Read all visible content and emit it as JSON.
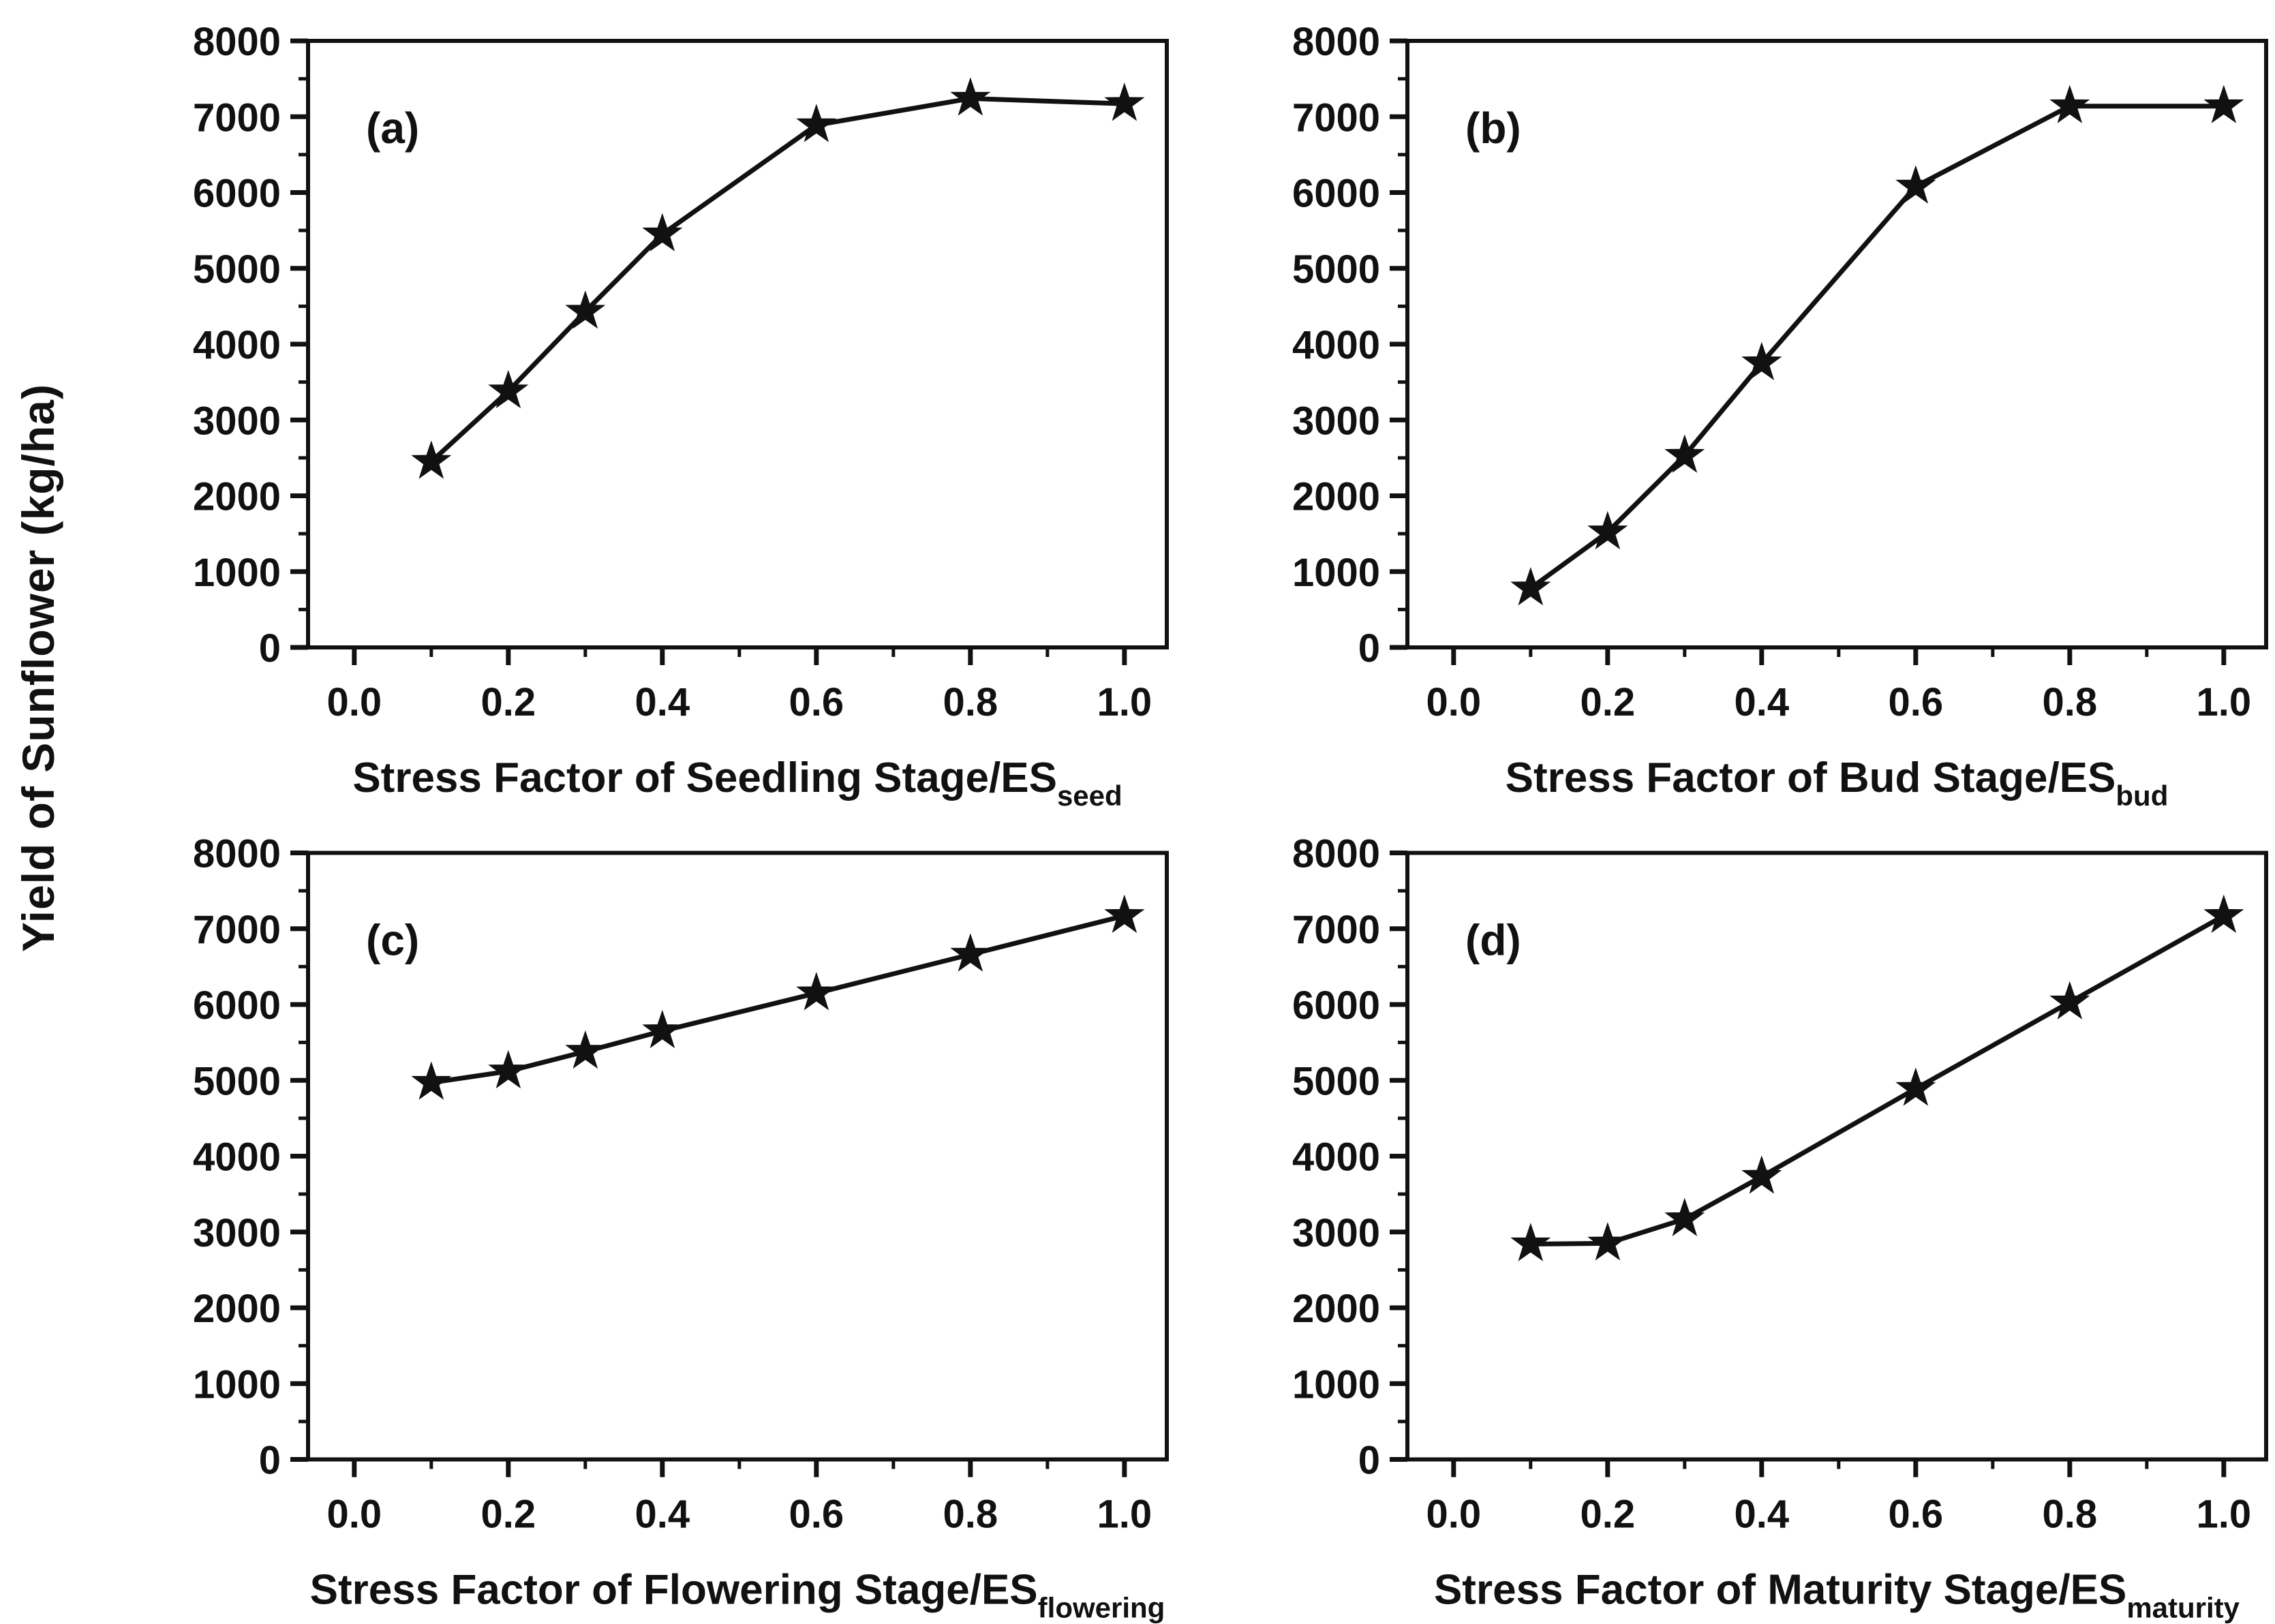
{
  "figure": {
    "ylabel": "Yield of Sunflower (kg/ha)",
    "background": "#ffffff",
    "line_color": "#111111",
    "text_color": "#111111",
    "marker": "star-icon"
  },
  "chart_data": [
    {
      "type": "line",
      "panel_label": "(a)",
      "xlabel_main": "Stress Factor of Seedling Stage/ES",
      "xlabel_sub": "seed",
      "x": [
        0.1,
        0.2,
        0.3,
        0.4,
        0.6,
        0.8,
        1.0
      ],
      "y": [
        2450,
        3380,
        4430,
        5450,
        6890,
        7240,
        7170
      ],
      "xlim": [
        -0.06,
        1.055
      ],
      "ylim": [
        0,
        8000
      ],
      "xticks": [
        0.0,
        0.2,
        0.4,
        0.6,
        0.8,
        1.0
      ],
      "xtick_labels": [
        "0.0",
        "0.2",
        "0.4",
        "0.6",
        "0.8",
        "1.0"
      ],
      "xticks_minor": [
        0.1,
        0.3,
        0.5,
        0.7,
        0.9
      ],
      "yticks": [
        0,
        1000,
        2000,
        3000,
        4000,
        5000,
        6000,
        7000,
        8000
      ],
      "ytick_labels": [
        "0",
        "1000",
        "2000",
        "3000",
        "4000",
        "5000",
        "6000",
        "7000",
        "8000"
      ],
      "yticks_minor": [
        500,
        1500,
        2500,
        3500,
        4500,
        5500,
        6500,
        7500
      ],
      "grid": "off",
      "legend": "none"
    },
    {
      "type": "line",
      "panel_label": "(b)",
      "xlabel_main": "Stress Factor of Bud Stage/ES",
      "xlabel_sub": "bud",
      "x": [
        0.1,
        0.2,
        0.3,
        0.4,
        0.6,
        0.8,
        1.0
      ],
      "y": [
        780,
        1520,
        2530,
        3750,
        6080,
        7140,
        7140
      ],
      "xlim": [
        -0.06,
        1.055
      ],
      "ylim": [
        0,
        8000
      ],
      "xticks": [
        0.0,
        0.2,
        0.4,
        0.6,
        0.8,
        1.0
      ],
      "xtick_labels": [
        "0.0",
        "0.2",
        "0.4",
        "0.6",
        "0.8",
        "1.0"
      ],
      "xticks_minor": [
        0.1,
        0.3,
        0.5,
        0.7,
        0.9
      ],
      "yticks": [
        0,
        1000,
        2000,
        3000,
        4000,
        5000,
        6000,
        7000,
        8000
      ],
      "ytick_labels": [
        "0",
        "1000",
        "2000",
        "3000",
        "4000",
        "5000",
        "6000",
        "7000",
        "8000"
      ],
      "yticks_minor": [
        500,
        1500,
        2500,
        3500,
        4500,
        5500,
        6500,
        7500
      ],
      "grid": "off",
      "legend": "none"
    },
    {
      "type": "line",
      "panel_label": "(c)",
      "xlabel_main": "Stress Factor of Flowering Stage/ES",
      "xlabel_sub": "flowering",
      "x": [
        0.1,
        0.2,
        0.3,
        0.4,
        0.6,
        0.8,
        1.0
      ],
      "y": [
        4970,
        5120,
        5380,
        5650,
        6150,
        6660,
        7170
      ],
      "xlim": [
        -0.06,
        1.055
      ],
      "ylim": [
        0,
        8000
      ],
      "xticks": [
        0.0,
        0.2,
        0.4,
        0.6,
        0.8,
        1.0
      ],
      "xtick_labels": [
        "0.0",
        "0.2",
        "0.4",
        "0.6",
        "0.8",
        "1.0"
      ],
      "xticks_minor": [
        0.1,
        0.3,
        0.5,
        0.7,
        0.9
      ],
      "yticks": [
        0,
        1000,
        2000,
        3000,
        4000,
        5000,
        6000,
        7000,
        8000
      ],
      "ytick_labels": [
        "0",
        "1000",
        "2000",
        "3000",
        "4000",
        "5000",
        "6000",
        "7000",
        "8000"
      ],
      "yticks_minor": [
        500,
        1500,
        2500,
        3500,
        4500,
        5500,
        6500,
        7500
      ],
      "grid": "off",
      "legend": "none"
    },
    {
      "type": "line",
      "panel_label": "(d)",
      "xlabel_main": "Stress Factor of Maturity Stage/ES",
      "xlabel_sub": "maturity",
      "x": [
        0.1,
        0.2,
        0.3,
        0.4,
        0.6,
        0.8,
        1.0
      ],
      "y": [
        2840,
        2850,
        3170,
        3730,
        4890,
        6030,
        7170
      ],
      "xlim": [
        -0.06,
        1.055
      ],
      "ylim": [
        0,
        8000
      ],
      "xticks": [
        0.0,
        0.2,
        0.4,
        0.6,
        0.8,
        1.0
      ],
      "xtick_labels": [
        "0.0",
        "0.2",
        "0.4",
        "0.6",
        "0.8",
        "1.0"
      ],
      "xticks_minor": [
        0.1,
        0.3,
        0.5,
        0.7,
        0.9
      ],
      "yticks": [
        0,
        1000,
        2000,
        3000,
        4000,
        5000,
        6000,
        7000,
        8000
      ],
      "ytick_labels": [
        "0",
        "1000",
        "2000",
        "3000",
        "4000",
        "5000",
        "6000",
        "7000",
        "8000"
      ],
      "yticks_minor": [
        500,
        1500,
        2500,
        3500,
        4500,
        5500,
        6500,
        7500
      ],
      "grid": "off",
      "legend": "none"
    }
  ]
}
